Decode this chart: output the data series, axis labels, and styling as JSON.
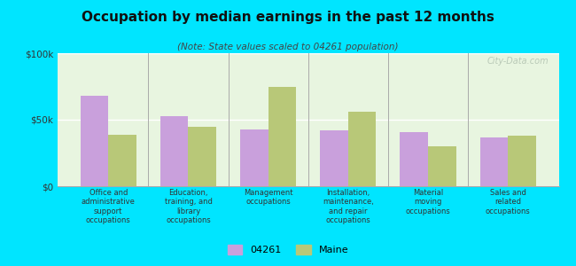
{
  "title": "Occupation by median earnings in the past 12 months",
  "subtitle": "(Note: State values scaled to 04261 population)",
  "categories": [
    "Office and\nadministrative\nsupport\noccupations",
    "Education,\ntraining, and\nlibrary\noccupations",
    "Management\noccupations",
    "Installation,\nmaintenance,\nand repair\noccupations",
    "Material\nmoving\noccupations",
    "Sales and\nrelated\noccupations"
  ],
  "values_04261": [
    68000,
    53000,
    43000,
    42000,
    41000,
    37000
  ],
  "values_maine": [
    39000,
    45000,
    75000,
    56000,
    30000,
    38000
  ],
  "color_04261": "#c9a0dc",
  "color_maine": "#b8c878",
  "background_fig": "#00e5ff",
  "background_plot": "#e8f5e0",
  "ylim": [
    0,
    100000
  ],
  "yticks": [
    0,
    50000,
    100000
  ],
  "ytick_labels": [
    "$0",
    "$50k",
    "$100k"
  ],
  "legend_labels": [
    "04261",
    "Maine"
  ],
  "watermark": "City-Data.com",
  "bar_width": 0.35
}
